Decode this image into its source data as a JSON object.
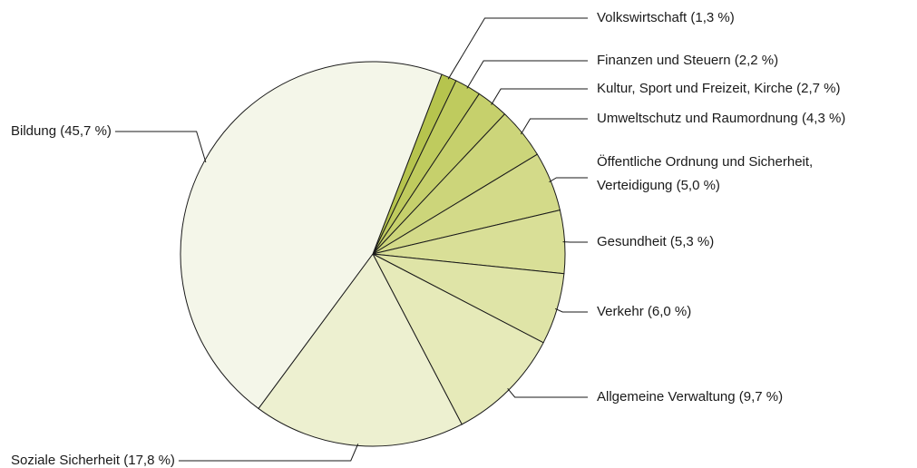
{
  "chart_data": {
    "type": "pie",
    "categories": [
      "Volkswirtschaft (1,3 %)",
      "Finanzen und Steuern (2,2 %)",
      "Kultur, Sport und Freizeit, Kirche (2,7 %)",
      "Umweltschutz und Raumordnung (4,3 %)",
      "Öffentliche Ordnung und Sicherheit,\nVerteidigung (5,0 %)",
      "Gesundheit (5,3 %)",
      "Verkehr (6,0 %)",
      "Allgemeine Verwaltung (9,7 %)",
      "Soziale Sicherheit (17,8 %)",
      "Bildung (45,7 %)"
    ],
    "values": [
      1.3,
      2.2,
      2.7,
      4.3,
      5.0,
      5.3,
      6.0,
      9.7,
      17.8,
      45.7
    ],
    "colors": [
      "#b6c44e",
      "#bfcb5e",
      "#c6d06c",
      "#ccd57a",
      "#d3da89",
      "#d9df97",
      "#dfe4a7",
      "#e6eab9",
      "#edf0d0",
      "#f4f6e9"
    ]
  }
}
